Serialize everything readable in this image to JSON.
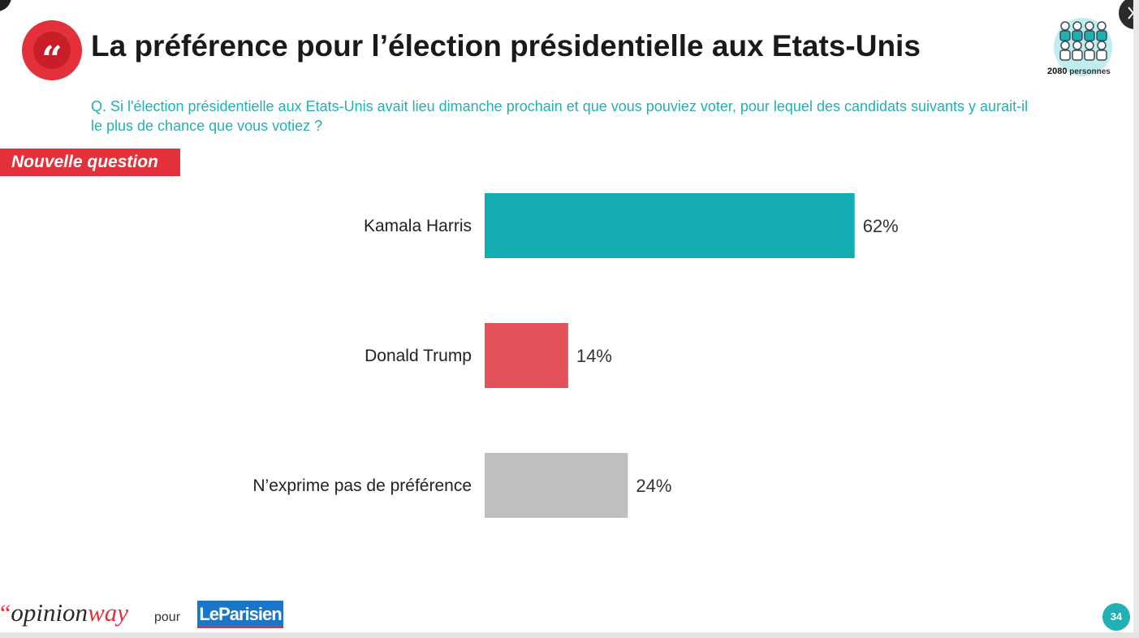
{
  "header": {
    "quote_glyph": "“",
    "title": "La préférence pour l’élection présidentielle aux Etats-Unis",
    "question": "Q. Si l'élection présidentielle aux Etats-Unis avait lieu dimanche prochain et que vous pouviez voter, pour lequel des candidats suivants y aurait-il le plus de chance que vous votiez ?",
    "tag": "Nouvelle question"
  },
  "sample": {
    "count": "2080",
    "unit": "personnes",
    "icon": "people-group-icon"
  },
  "chart_data": {
    "type": "bar",
    "orientation": "horizontal",
    "categories": [
      "Kamala Harris",
      "Donald Trump",
      "N’exprime pas de préférence"
    ],
    "values": [
      62,
      14,
      24
    ],
    "value_labels": [
      "62%",
      "14%",
      "24%"
    ],
    "colors": [
      "#15adb4",
      "#e3525a",
      "#bfbfbf"
    ],
    "xlim": [
      0,
      100
    ],
    "grid": false,
    "title": "",
    "xlabel": "",
    "ylabel": ""
  },
  "footer": {
    "logo_mark": "“",
    "logo_opinion": "opinion",
    "logo_way": "way",
    "pour": "pour",
    "partner": "LeParisien",
    "page": "34"
  },
  "colors": {
    "accent_red": "#e2313a",
    "accent_teal": "#22b0b4",
    "partner_blue": "#1976c8"
  }
}
